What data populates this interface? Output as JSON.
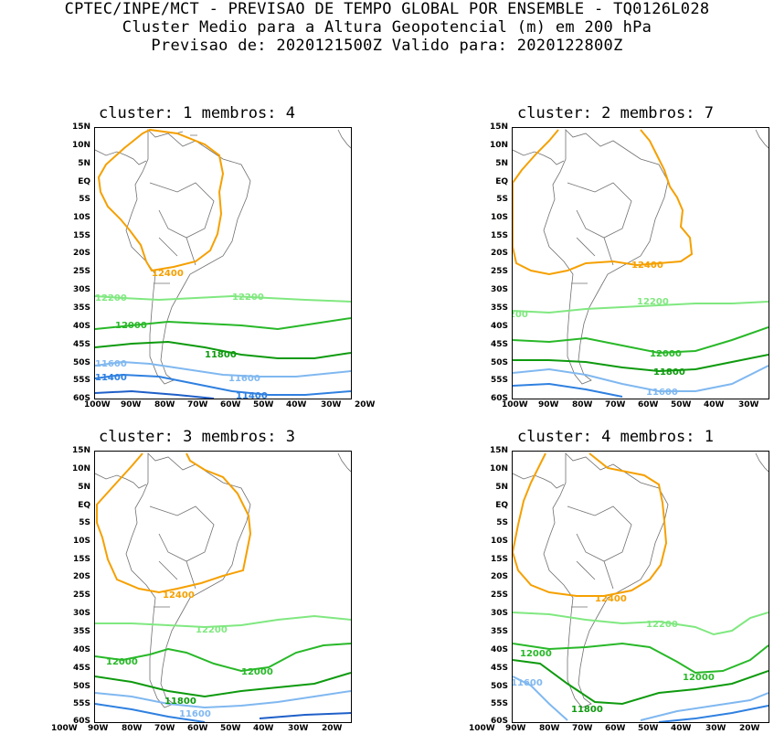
{
  "header": {
    "line1": "CPTEC/INPE/MCT - PREVISAO DE TEMPO GLOBAL POR ENSEMBLE - TQ0126L028",
    "line2": "Cluster Medio para a Altura Geopotencial (m) em 200 hPa",
    "line3": "Previsao de: 2020121500Z   Valido para: 2020122800Z"
  },
  "axes": {
    "lat_ticks": [
      "15N",
      "10N",
      "5N",
      "EQ",
      "5S",
      "10S",
      "15S",
      "20S",
      "25S",
      "30S",
      "35S",
      "40S",
      "45S",
      "50S",
      "55S",
      "60S"
    ],
    "lon_ticks": [
      "100W",
      "90W",
      "80W",
      "70W",
      "60W",
      "50W",
      "40W",
      "30W",
      "20W"
    ]
  },
  "colors": {
    "c12400": "#f5a000",
    "c12200": "#80e880",
    "c12000": "#28b828",
    "c11800": "#0e9a0e",
    "c11600": "#80b8f0",
    "c11400": "#2f80e0",
    "c11200": "#1f5fc8",
    "coast": "#707070"
  },
  "panels": [
    {
      "title": "cluster: 1   membros: 4",
      "labels": {
        "l12400": "12400",
        "l12200a": "12200",
        "l12200b": "12200",
        "l12000": "12000",
        "l11800": "11800",
        "l11600a": "11600",
        "l11600b": "11600",
        "l11400a": "11400",
        "l11400b": "11400"
      }
    },
    {
      "title": "cluster: 2   membros: 7",
      "labels": {
        "l12400": "12400",
        "l12200a": "12200",
        "l12200b": "12200",
        "l12000": "12000",
        "l11800": "11800",
        "l11600a": "11600"
      }
    },
    {
      "title": "cluster: 3   membros: 3",
      "labels": {
        "l12400": "12400",
        "l12200a": "12200",
        "l12000a": "12000",
        "l12000b": "12000",
        "l11800": "11800",
        "l11600a": "11600"
      }
    },
    {
      "title": "cluster: 4   membros: 1",
      "labels": {
        "l12400": "12400",
        "l12200a": "12200",
        "l12200b": "12200",
        "l12000a": "12000",
        "l12000b": "12000",
        "l11800": "11800",
        "l11600a": "11600"
      }
    }
  ]
}
